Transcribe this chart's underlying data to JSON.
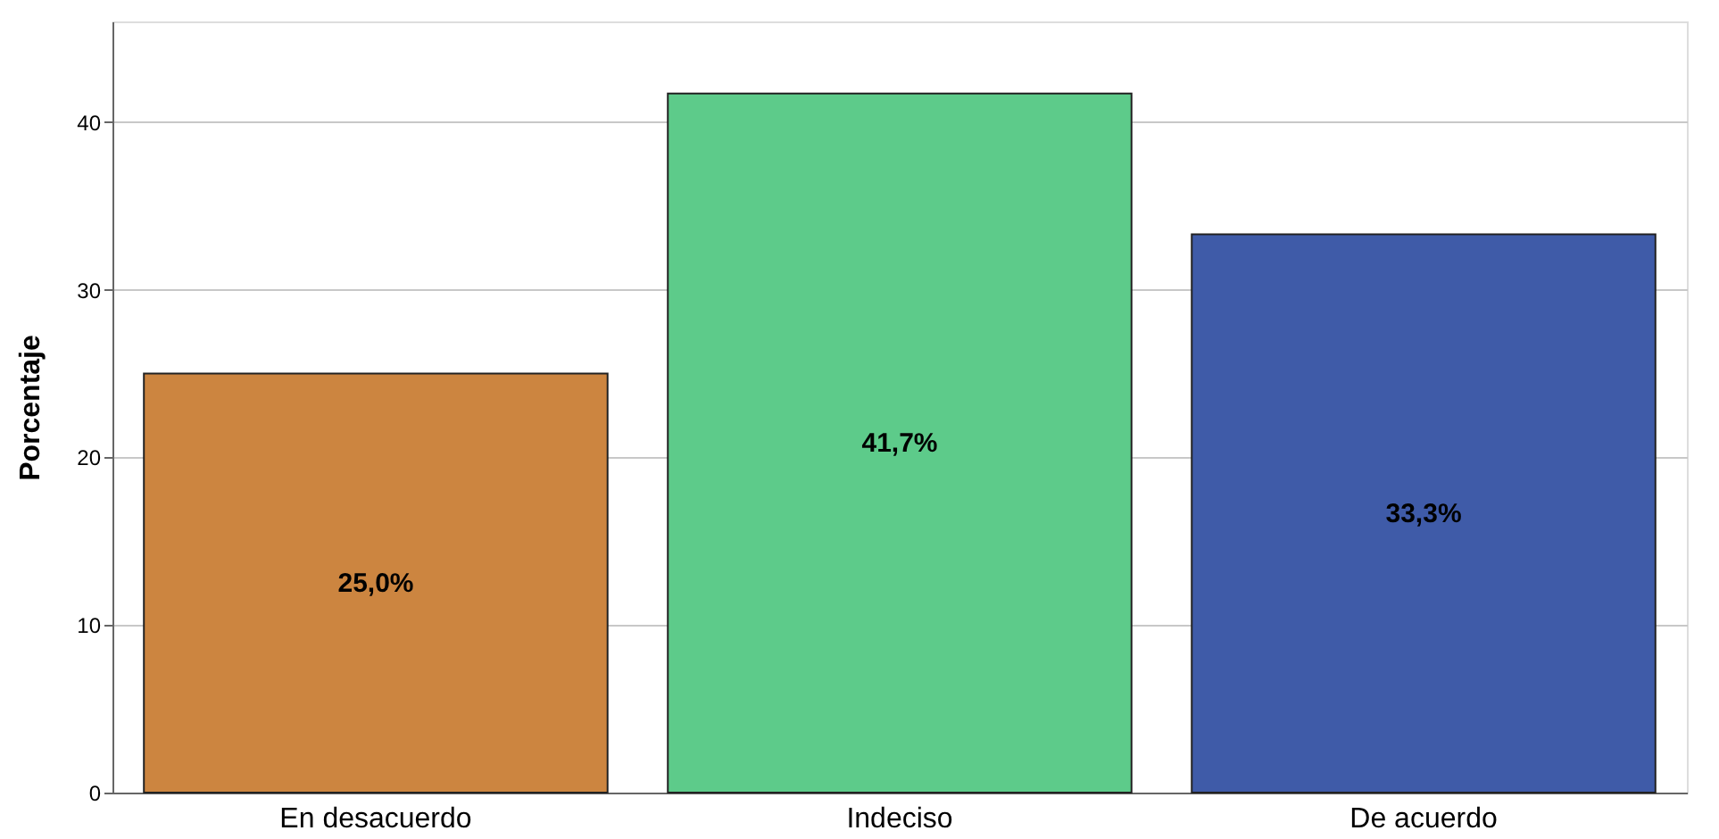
{
  "chart_data": {
    "type": "bar",
    "ylabel": "Porcentaje",
    "categories": [
      "En desacuerdo",
      "Indeciso",
      "De acuerdo"
    ],
    "values": [
      25.0,
      41.7,
      33.3
    ],
    "colors": [
      "#cc8540",
      "#5dcb8a",
      "#3f5ba8"
    ],
    "value_labels": [
      "25,0%",
      "41,7%",
      "33,3%"
    ],
    "ylim": [
      0,
      46
    ],
    "yticks": [
      0,
      10,
      20,
      30,
      40
    ],
    "grid": "y"
  }
}
